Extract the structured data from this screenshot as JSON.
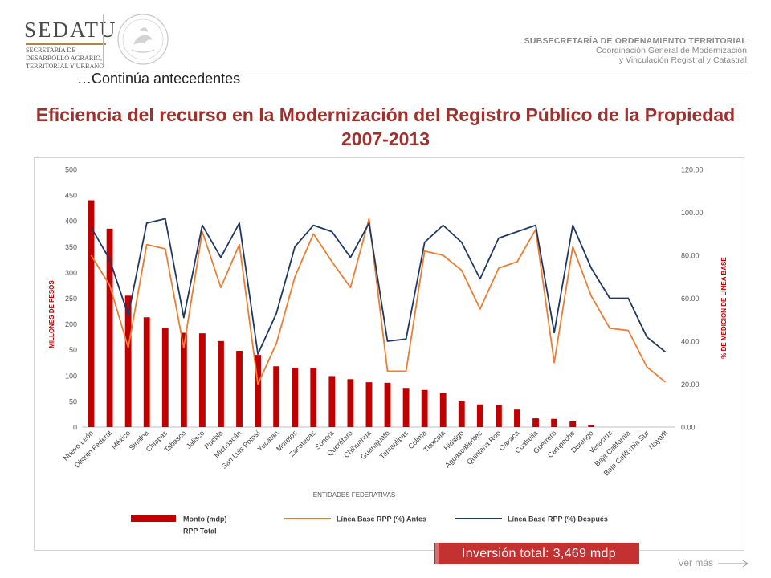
{
  "header": {
    "logo_text": "SEDATU",
    "logo_sub": "SECRETARÍA DE DESARROLLO AGRARIO, TERRITORIAL Y URBANO",
    "right_line1": "SUBSECRETARÍA DE ORDENAMIENTO TERRITORIAL",
    "right_line2": "Coordinación General de Modernización",
    "right_line3": "y Vinculación Registral y Catastral"
  },
  "subtitle": "…Continúa antecedentes",
  "slide_title": "Eficiencia del recurso en la Modernización del Registro Público de la Propiedad 2007-2013",
  "total_label": "Inversión total: 3,469 mdp",
  "ver_mas": "Ver más",
  "colors": {
    "bar": "#c00000",
    "antes": "#ed7d31",
    "despues": "#1f3864",
    "title": "#a12f2b"
  },
  "chart_data": {
    "type": "bar+line",
    "xlabel": "ENTIDADES FEDERATIVAS",
    "ylabel": "MILLONES DE PESOS",
    "y2label": "% DE MEDICION DE LINEA BASE",
    "ylim": [
      0,
      500
    ],
    "y2lim": [
      0,
      120
    ],
    "yticks": [
      "0",
      "50",
      "100",
      "150",
      "200",
      "250",
      "300",
      "350",
      "400",
      "450",
      "500"
    ],
    "y2ticks": [
      "0.00",
      "20.00",
      "40.00",
      "60.00",
      "80.00",
      "100.00",
      "120.00"
    ],
    "categories": [
      "Nuevo León",
      "Distrito Federal",
      "México",
      "Sinaloa",
      "Chiapas",
      "Tabasco",
      "Jalisco",
      "Puebla",
      "Michoacán",
      "San Luis Potosí",
      "Yucatán",
      "Morelos",
      "Zacatecas",
      "Sonora",
      "Querétaro",
      "Chihuahua",
      "Guanajuato",
      "Tamaulipas",
      "Colima",
      "Tlaxcala",
      "Hidalgo",
      "Aguascalientes",
      "Quintana Roo",
      "Oaxaca",
      "Coahuila",
      "Guerrero",
      "Campeche",
      "Durango",
      "Veracruz",
      "Baja California",
      "Baja California Sur",
      "Nayarit"
    ],
    "series": [
      {
        "name": "Monto (mdp) RPP Total",
        "axis": "left",
        "kind": "bar",
        "values": [
          440,
          385,
          255,
          213,
          193,
          183,
          182,
          167,
          148,
          140,
          118,
          115,
          115,
          99,
          93,
          87,
          86,
          76,
          72,
          66,
          50,
          44,
          43,
          34,
          17,
          16,
          11,
          4,
          0,
          0,
          0,
          0
        ]
      },
      {
        "name": "Línea Base RPP (%) Antes",
        "axis": "right",
        "kind": "line",
        "values": [
          80,
          66,
          37,
          85,
          83,
          37,
          91,
          65,
          85,
          20,
          39,
          70,
          90,
          77,
          65,
          97,
          26,
          26,
          82,
          80,
          73,
          55,
          74,
          77,
          92,
          30,
          84,
          61,
          46,
          45,
          28,
          21
        ]
      },
      {
        "name": "Línea Base RPP (%) Después",
        "axis": "right",
        "kind": "line",
        "values": [
          93,
          78,
          52,
          95,
          97,
          51,
          94,
          79,
          95,
          34,
          53,
          84,
          94,
          91,
          79,
          95,
          40,
          41,
          86,
          94,
          86,
          69,
          88,
          91,
          94,
          44,
          94,
          74,
          60,
          60,
          42,
          35
        ]
      }
    ],
    "legend": [
      "Monto (mdp) RPP Total",
      "Línea Base  RPP (%) Antes",
      "Línea Base  RPP (%) Después"
    ]
  }
}
